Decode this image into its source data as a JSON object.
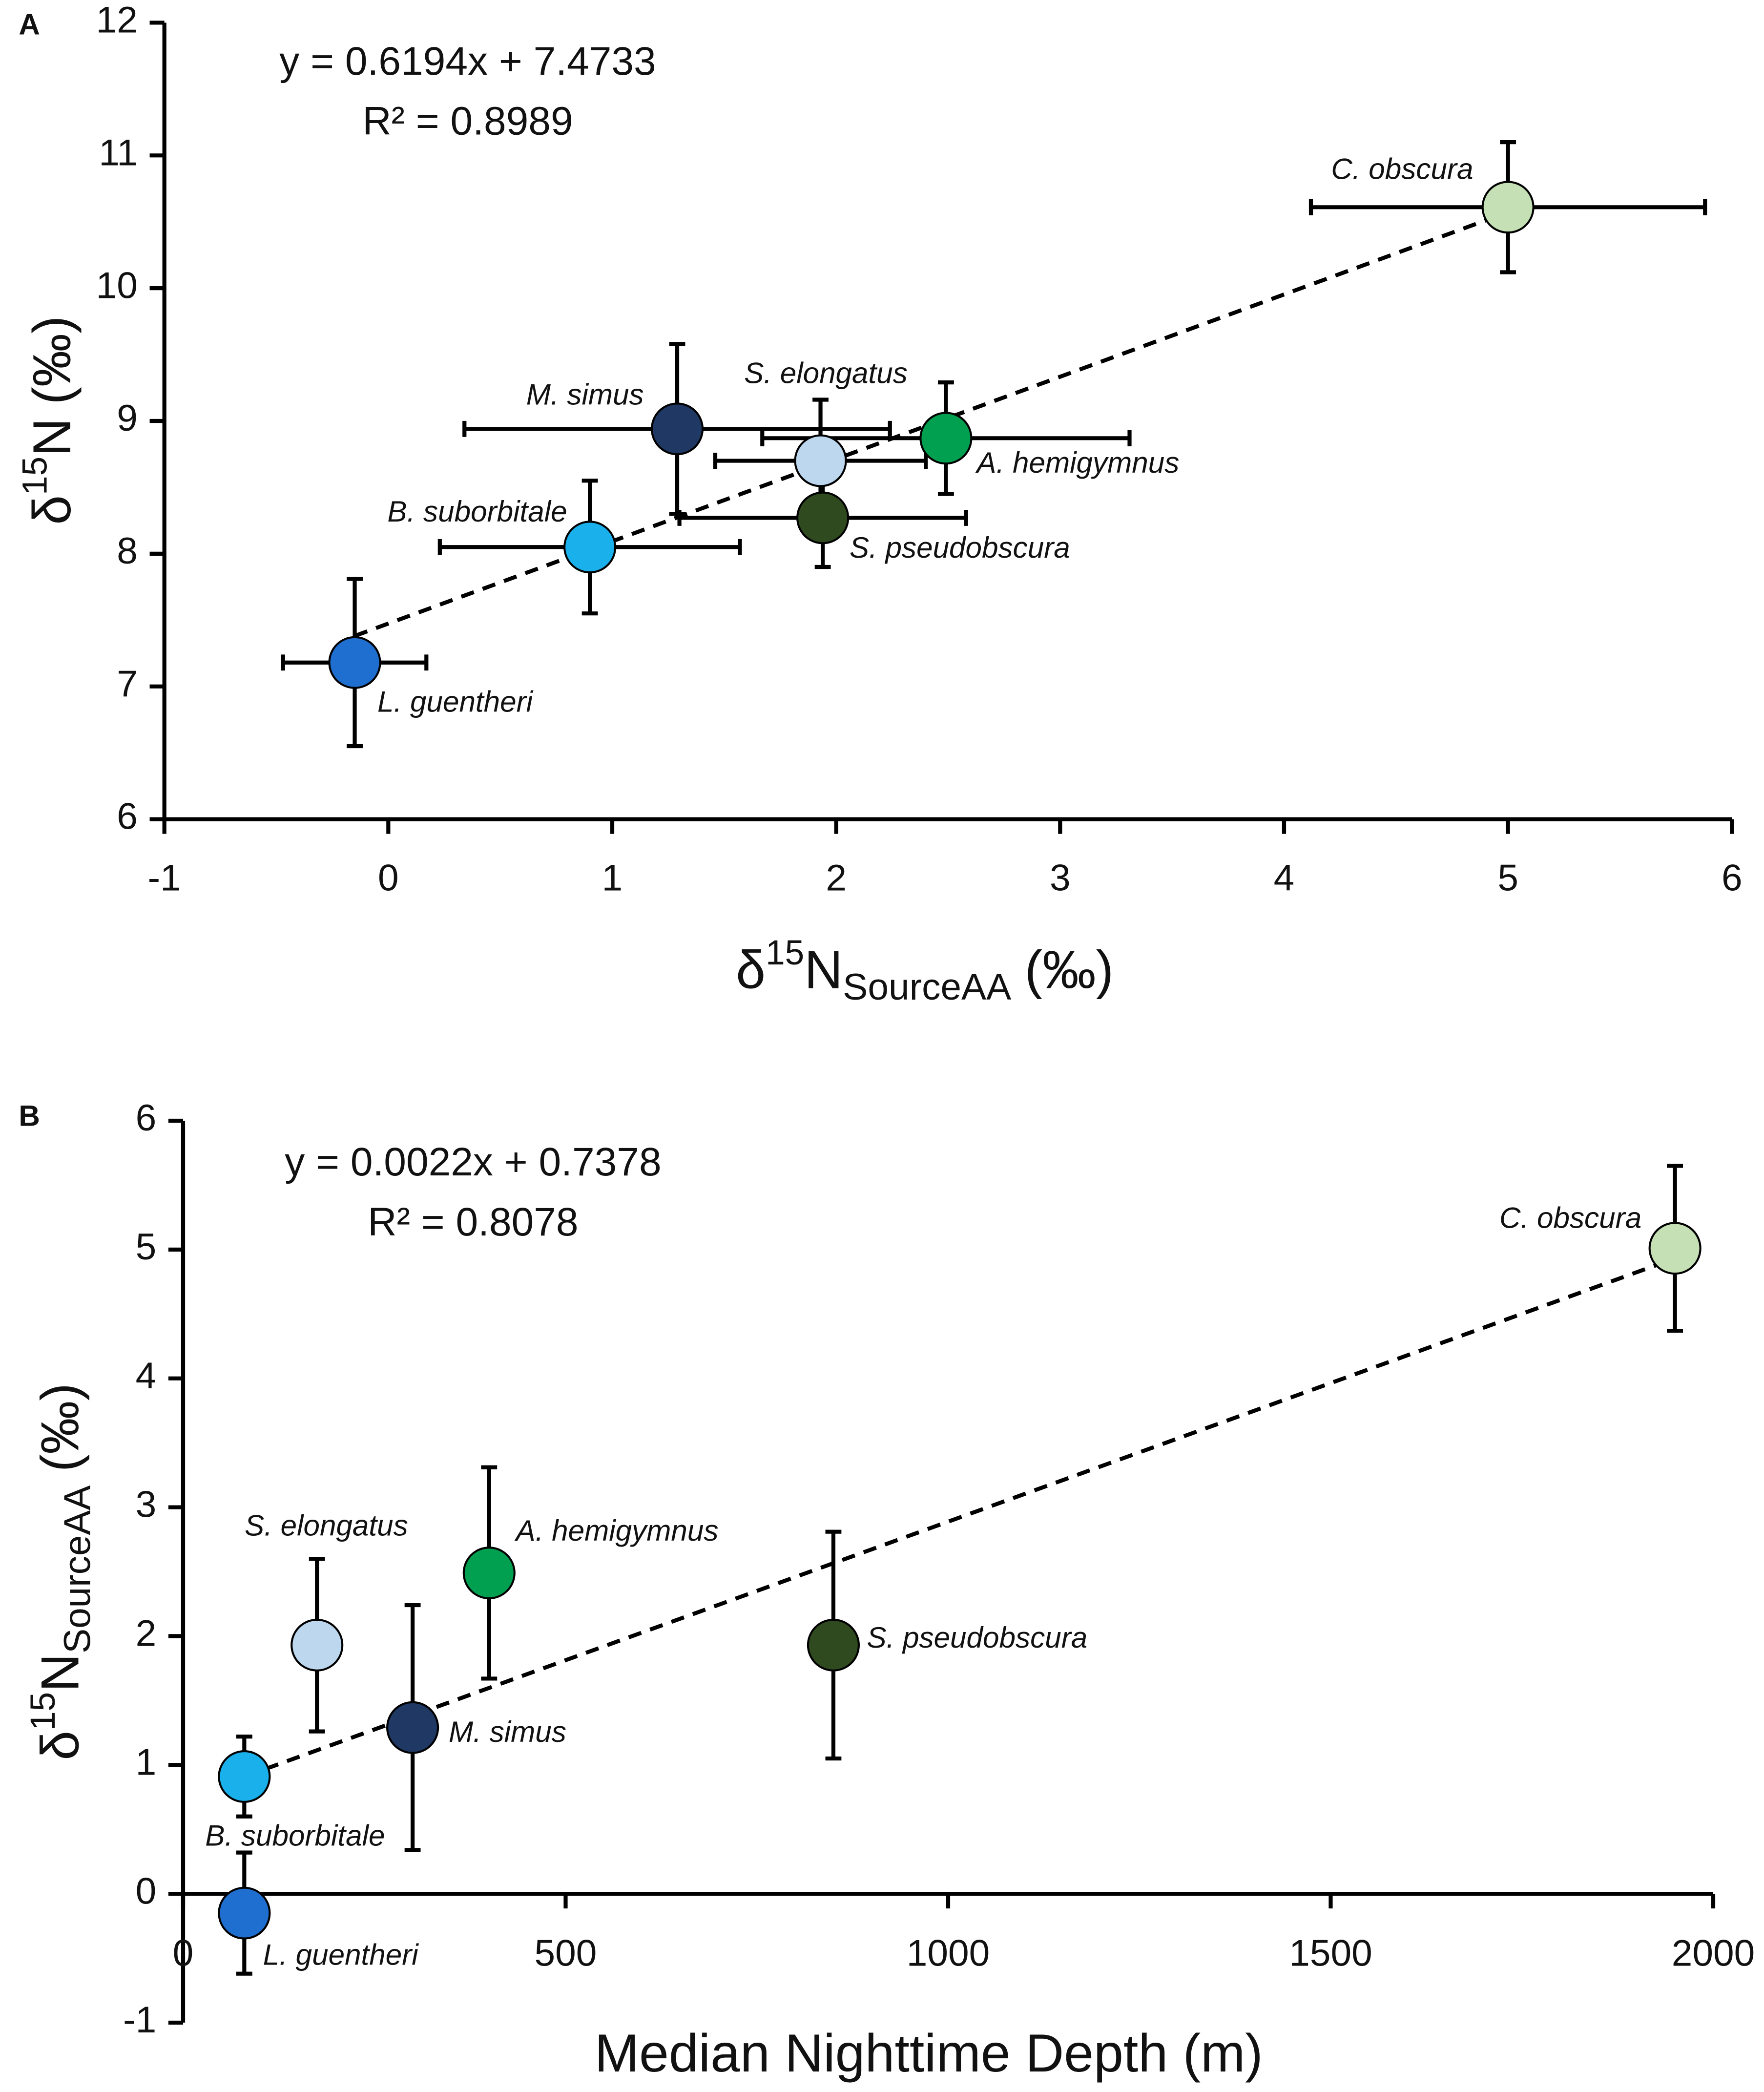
{
  "chart_data": [
    {
      "type": "scatter",
      "panel": "A",
      "annotations": [
        "y = 0.6194x + 7.4733",
        "R² = 0.8989"
      ],
      "xlabel": {
        "symbol": "δ",
        "mass": "15",
        "element": "N",
        "subscript": "SourceAA",
        "unit": "(‰)"
      },
      "ylabel": {
        "symbol": "δ",
        "mass": "15",
        "element": "N",
        "unit": "(‰)"
      },
      "xlim": [
        -1,
        6
      ],
      "xticks": [
        -1,
        0,
        1,
        2,
        3,
        4,
        5,
        6
      ],
      "ylim": [
        6,
        12
      ],
      "yticks": [
        6,
        7,
        8,
        9,
        10,
        11,
        12
      ],
      "trendline": true,
      "points": [
        {
          "name": "L. guentheri",
          "color": "#1f6fd0",
          "x": -0.15,
          "y": 7.18,
          "xerr": 0.32,
          "yerr": 0.63
        },
        {
          "name": "B. suborbitale",
          "color": "#1ab0ec",
          "x": 0.9,
          "y": 8.05,
          "xerr": 0.67,
          "yerr": 0.5
        },
        {
          "name": "M. simus",
          "color": "#1f3864",
          "x": 1.29,
          "y": 8.94,
          "xerr": 0.95,
          "yerr": 0.64
        },
        {
          "name": "S. elongatus",
          "color": "#bdd7ee",
          "x": 1.93,
          "y": 8.7,
          "xerr": 0.47,
          "yerr": 0.46
        },
        {
          "name": "A. hemigymnus",
          "color": "#00a050",
          "x": 2.49,
          "y": 8.87,
          "xerr": 0.82,
          "yerr": 0.42
        },
        {
          "name": "S. pseudobscura",
          "color": "#2f4a1f",
          "x": 1.94,
          "y": 8.27,
          "xerr": 0.64,
          "yerr": 0.37
        },
        {
          "name": "C. obscura",
          "color": "#c5e0b4",
          "x": 5.0,
          "y": 10.61,
          "xerr": 0.88,
          "yerr": 0.49
        }
      ]
    },
    {
      "type": "scatter",
      "panel": "B",
      "annotations": [
        "y = 0.0022x + 0.7378",
        "R² = 0.8078"
      ],
      "xlabel": "Median Nighttime Depth (m)",
      "ylabel": {
        "symbol": "δ",
        "mass": "15",
        "element": "N",
        "subscript": "SourceAA",
        "unit": "(‰)"
      },
      "xlim": [
        0,
        2000
      ],
      "xticks": [
        0,
        500,
        1000,
        1500,
        2000
      ],
      "ylim": [
        -1,
        6
      ],
      "yticks": [
        -1,
        0,
        1,
        2,
        3,
        4,
        5,
        6
      ],
      "trendline": true,
      "points": [
        {
          "name": "L. guentheri",
          "color": "#1f6fd0",
          "x": 80,
          "y": -0.15,
          "yerr": 0.47
        },
        {
          "name": "B. suborbitale",
          "color": "#1ab0ec",
          "x": 80,
          "y": 0.91,
          "yerr": 0.31
        },
        {
          "name": "S. elongatus",
          "color": "#bdd7ee",
          "x": 175,
          "y": 1.93,
          "yerr": 0.67
        },
        {
          "name": "M. simus",
          "color": "#1f3864",
          "x": 300,
          "y": 1.29,
          "yerr": 0.95
        },
        {
          "name": "A. hemigymnus",
          "color": "#00a050",
          "x": 400,
          "y": 2.49,
          "yerr": 0.82
        },
        {
          "name": "S. pseudobscura",
          "color": "#2f4a1f",
          "x": 850,
          "y": 1.93,
          "yerr": 0.88
        },
        {
          "name": "C. obscura",
          "color": "#c5e0b4",
          "x": 1950,
          "y": 5.01,
          "yerr": 0.64
        }
      ]
    }
  ]
}
